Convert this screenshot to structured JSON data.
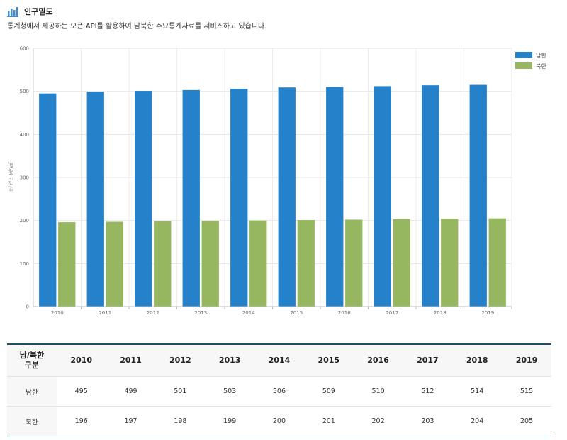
{
  "header": {
    "title": "인구밀도",
    "description": "통계청에서 제공하는 오픈 API를 활용하여 남북한 주요통계자료를 서비스하고 있습니다.",
    "icon": "bar-chart-icon"
  },
  "chart_data": {
    "type": "bar",
    "categories": [
      "2010",
      "2011",
      "2012",
      "2013",
      "2014",
      "2015",
      "2016",
      "2017",
      "2018",
      "2019"
    ],
    "series": [
      {
        "name": "남한",
        "color": "#2581c9",
        "values": [
          495,
          499,
          501,
          503,
          506,
          509,
          510,
          512,
          514,
          515
        ]
      },
      {
        "name": "북한",
        "color": "#97b660",
        "values": [
          196,
          197,
          198,
          199,
          200,
          201,
          202,
          203,
          204,
          205
        ]
      }
    ],
    "ylabel": "단위 : 명/㎢",
    "ylim": [
      0,
      600
    ],
    "yticks": [
      0,
      100,
      200,
      300,
      400,
      500,
      600
    ],
    "grid": true,
    "legend_position": "top-right"
  },
  "table": {
    "corner_top": "남/북한",
    "corner_bottom": "구분",
    "rows": [
      {
        "label": "남한",
        "values": [
          "495",
          "499",
          "501",
          "503",
          "506",
          "509",
          "510",
          "512",
          "514",
          "515"
        ]
      },
      {
        "label": "북한",
        "values": [
          "196",
          "197",
          "198",
          "199",
          "200",
          "201",
          "202",
          "203",
          "204",
          "205"
        ]
      }
    ]
  }
}
